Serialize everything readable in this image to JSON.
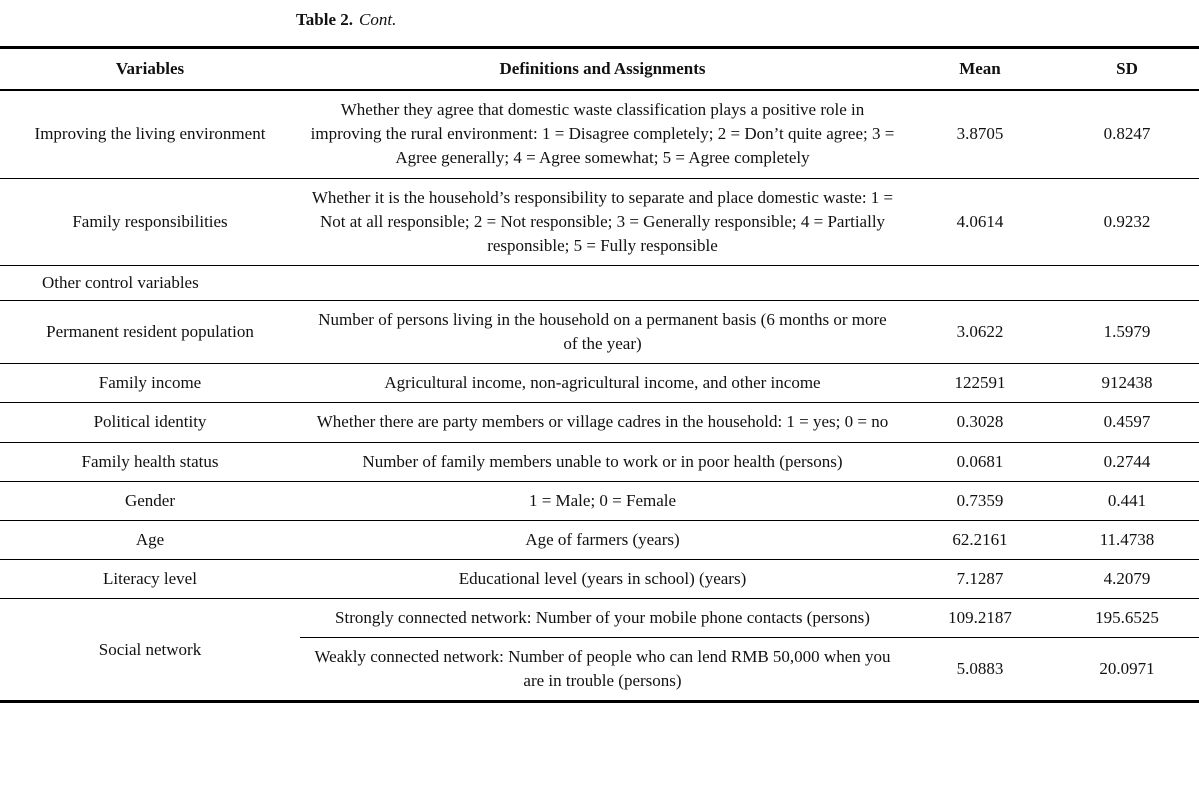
{
  "title": {
    "label": "Table 2.",
    "cont": "Cont."
  },
  "table": {
    "headers": [
      "Variables",
      "Definitions and Assignments",
      "Mean",
      "SD"
    ],
    "rows": [
      {
        "variable": "Improving the living environment",
        "definition": "Whether they agree that domestic waste classification plays a positive role in improving the rural environment: 1 = Disagree completely; 2 = Don’t quite agree; 3 = Agree generally; 4 = Agree somewhat; 5 = Agree completely",
        "mean": "3.8705",
        "sd": "0.8247"
      },
      {
        "variable": "Family responsibilities",
        "definition": "Whether it is the household’s responsibility to separate and place domestic waste: 1 = Not at all responsible; 2 = Not responsible; 3 = Generally responsible; 4 = Partially responsible; 5 = Fully responsible",
        "mean": "4.0614",
        "sd": "0.9232"
      },
      {
        "section": true,
        "variable": "Other control variables"
      },
      {
        "variable": "Permanent resident population",
        "definition": "Number of persons living in the household on a permanent basis (6 months or more of the year)",
        "mean": "3.0622",
        "sd": "1.5979"
      },
      {
        "variable": "Family income",
        "definition": "Agricultural income, non-agricultural income, and other income",
        "mean": "122591",
        "sd": "912438"
      },
      {
        "variable": "Political identity",
        "definition": "Whether there are party members or village cadres in the household: 1 = yes; 0 = no",
        "mean": "0.3028",
        "sd": "0.4597"
      },
      {
        "variable": "Family health status",
        "definition": "Number of family members unable to work or in poor health (persons)",
        "mean": "0.0681",
        "sd": "0.2744"
      },
      {
        "variable": "Gender",
        "definition": "1 = Male; 0 = Female",
        "mean": "0.7359",
        "sd": "0.441"
      },
      {
        "variable": "Age",
        "definition": "Age of farmers (years)",
        "mean": "62.2161",
        "sd": "11.4738"
      },
      {
        "variable": "Literacy level",
        "definition": "Educational level (years in school) (years)",
        "mean": "7.1287",
        "sd": "4.2079"
      },
      {
        "variable": "Social network",
        "rowspan": 2,
        "definition": "Strongly connected network: Number of your mobile phone contacts (persons)",
        "mean": "109.2187",
        "sd": "195.6525"
      },
      {
        "variable": null,
        "definition": "Weakly connected network: Number of people who can lend RMB 50,000 when you are in trouble (persons)",
        "mean": "5.0883",
        "sd": "20.0971"
      }
    ]
  }
}
